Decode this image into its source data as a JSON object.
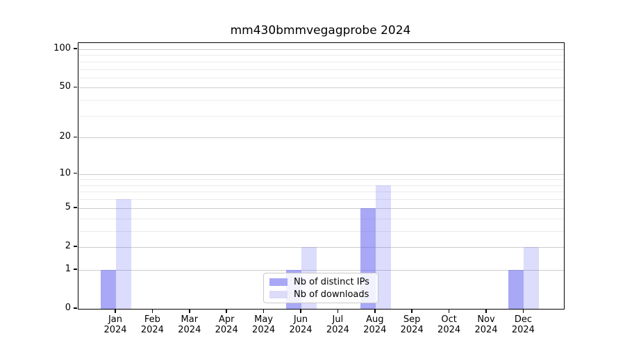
{
  "chart_data": {
    "type": "bar",
    "title": "mm430bmmvegagprobe 2024",
    "categories": [
      "Jan",
      "Feb",
      "Mar",
      "Apr",
      "May",
      "Jun",
      "Jul",
      "Aug",
      "Sep",
      "Oct",
      "Nov",
      "Dec"
    ],
    "year_label": "2024",
    "series": [
      {
        "name": "Nb of distinct IPs",
        "color": "rgba(102,102,240,0.57)",
        "color_hex": "#a8a8f6",
        "values": [
          1,
          0,
          0,
          0,
          0,
          1,
          0,
          5,
          0,
          0,
          0,
          1
        ]
      },
      {
        "name": "Nb of downloads",
        "color": "rgba(102,102,240,0.23)",
        "color_hex": "#dcdcf8",
        "values": [
          6,
          0,
          0,
          0,
          0,
          2,
          0,
          8,
          0,
          0,
          0,
          2
        ]
      }
    ],
    "yscale": "log1p",
    "ylim": [
      0,
      113
    ],
    "yticks": [
      0,
      1,
      2,
      5,
      10,
      20,
      50,
      100
    ],
    "ytick_labels": [
      "0",
      "1",
      "2",
      "5",
      "10",
      "20",
      "50",
      "100"
    ],
    "minor_yticks": [
      3,
      4,
      6,
      7,
      8,
      9,
      30,
      40,
      60,
      70,
      80,
      90
    ],
    "grid": "both",
    "legend_position": "lower center"
  },
  "colors": {
    "major_grid": "#cccccc",
    "minor_grid": "#ebebeb",
    "spine": "#000000",
    "background": "#ffffff",
    "text": "#000000"
  }
}
